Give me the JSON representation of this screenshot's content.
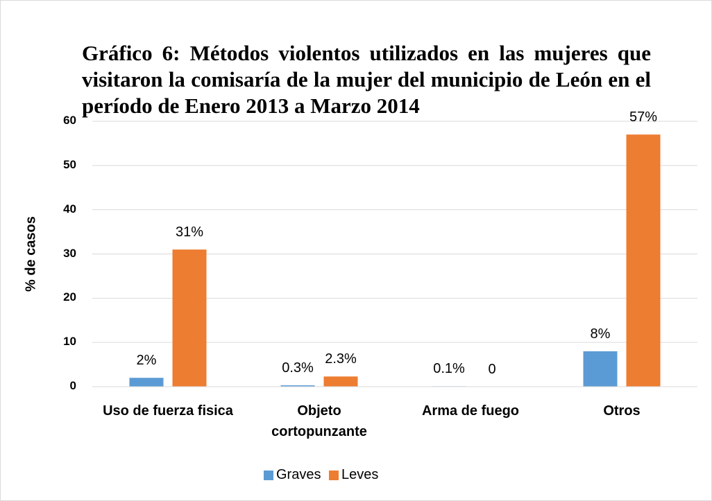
{
  "chart_data": {
    "type": "bar",
    "title": "Gráfico 6: Métodos violentos utilizados en las mujeres que visitaron la  comisaría de la mujer del municipio de León en el período de Enero 2013 a Marzo 2014",
    "y_label": "% de casos",
    "categories": [
      "Uso de fuerza fisica",
      "Objeto cortopunzante",
      "Arma de fuego",
      "Otros"
    ],
    "series": [
      {
        "name": "Graves",
        "color": "#5b9bd5",
        "values": [
          2,
          0.3,
          0.1,
          8
        ],
        "value_labels": [
          "2%",
          "0.3%",
          "0.1%",
          "8%"
        ]
      },
      {
        "name": "Leves",
        "color": "#ed7d31",
        "values": [
          31,
          2.3,
          0,
          57
        ],
        "value_labels": [
          "31%",
          "2.3%",
          "0",
          "57%"
        ]
      }
    ],
    "ylim": [
      0,
      60
    ],
    "yticks": [
      0,
      10,
      20,
      30,
      40,
      50,
      60
    ],
    "grid": true,
    "legend": "bottom"
  }
}
